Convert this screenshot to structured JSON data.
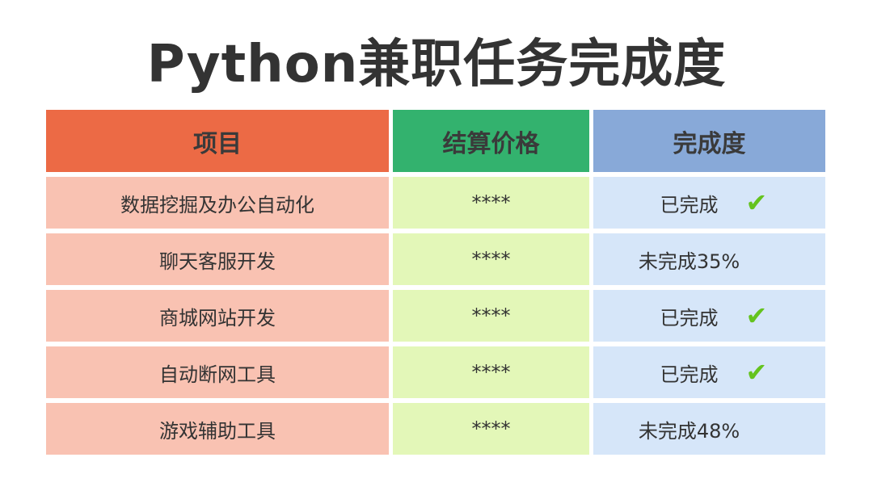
{
  "title": "Python兼职任务完成度",
  "headers": [
    "项目",
    "结算价格",
    "完成度"
  ],
  "rows": [
    {
      "project": "数据挖掘及办公自动化",
      "price": "****",
      "status": "已完成",
      "done": true
    },
    {
      "project": "聊天客服开发",
      "price": "****",
      "status": "未完成35%",
      "done": false
    },
    {
      "project": "商城网站开发",
      "price": "****",
      "status": "已完成",
      "done": true
    },
    {
      "project": "自动断网工具",
      "price": "****",
      "status": "已完成",
      "done": true
    },
    {
      "project": "游戏辅助工具",
      "price": "****",
      "status": "未完成48%",
      "done": false
    }
  ],
  "colors": {
    "header_project": "#ec6a45",
    "header_price": "#33b26e",
    "header_status": "#88a9d8",
    "check": "#64c31e"
  },
  "icons": {
    "done": "check-icon"
  }
}
